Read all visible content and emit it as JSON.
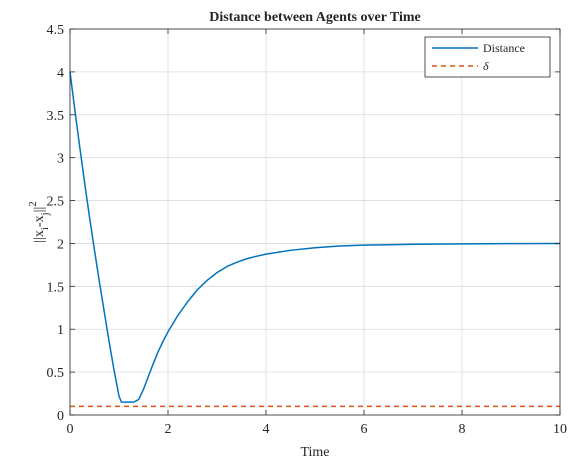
{
  "chart_data": {
    "type": "line",
    "title": "Distance between Agents over Time",
    "xlabel": "Time",
    "ylabel": {
      "base": "||x",
      "sub1": "i",
      "mid": "-x",
      "sub2": "j",
      "close": "||",
      "sup": "2"
    },
    "xlim": [
      0,
      10
    ],
    "ylim": [
      0,
      4.5
    ],
    "xticks": [
      0,
      2,
      4,
      6,
      8,
      10
    ],
    "xtick_labels": [
      "0",
      "2",
      "4",
      "6",
      "8",
      "10"
    ],
    "yticks": [
      0,
      0.5,
      1,
      1.5,
      2,
      2.5,
      3,
      3.5,
      4,
      4.5
    ],
    "ytick_labels": [
      "0",
      "0.5",
      "1",
      "1.5",
      "2",
      "2.5",
      "3",
      "3.5",
      "4",
      "4.5"
    ],
    "grid": true,
    "legend_position": "top-right",
    "series": [
      {
        "name": "Distance",
        "color": "#0072BD",
        "style": "solid",
        "x": [
          0,
          0.1,
          0.2,
          0.3,
          0.4,
          0.5,
          0.6,
          0.7,
          0.8,
          0.9,
          1.0,
          1.05,
          1.1,
          1.2,
          1.3,
          1.4,
          1.5,
          1.6,
          1.7,
          1.8,
          1.9,
          2.0,
          2.2,
          2.4,
          2.6,
          2.8,
          3.0,
          3.2,
          3.4,
          3.6,
          3.8,
          4.0,
          4.5,
          5.0,
          5.5,
          6.0,
          6.5,
          7.0,
          8.0,
          9.0,
          10.0
        ],
        "y": [
          4.0,
          3.55,
          3.12,
          2.7,
          2.3,
          1.92,
          1.55,
          1.2,
          0.85,
          0.52,
          0.22,
          0.15,
          0.15,
          0.15,
          0.15,
          0.18,
          0.3,
          0.45,
          0.6,
          0.74,
          0.86,
          0.97,
          1.16,
          1.32,
          1.46,
          1.57,
          1.66,
          1.73,
          1.78,
          1.82,
          1.85,
          1.875,
          1.92,
          1.95,
          1.97,
          1.98,
          1.985,
          1.99,
          1.995,
          1.998,
          2.0
        ]
      },
      {
        "name": "δ",
        "color": "#D95319",
        "style": "dashed",
        "x": [
          0,
          10
        ],
        "y": [
          0.1,
          0.1
        ]
      }
    ]
  }
}
